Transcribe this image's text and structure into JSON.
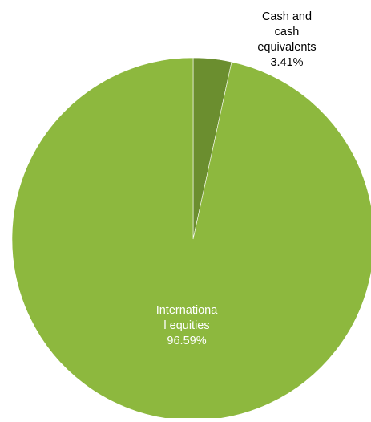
{
  "chart_data": {
    "type": "pie",
    "title": "",
    "slices": [
      {
        "label_lines": [
          "Cash and",
          "cash",
          "equivalents"
        ],
        "value_text": "3.41%",
        "value": 3.41,
        "color": "#6b8e2f",
        "label_color": "#000000"
      },
      {
        "label_lines": [
          "Internationa",
          "l equities"
        ],
        "value_text": "96.59%",
        "value": 96.59,
        "color": "#8db83e",
        "label_color": "#ffffff"
      }
    ],
    "start_angle": "top",
    "direction": "clockwise",
    "legend": "none"
  }
}
